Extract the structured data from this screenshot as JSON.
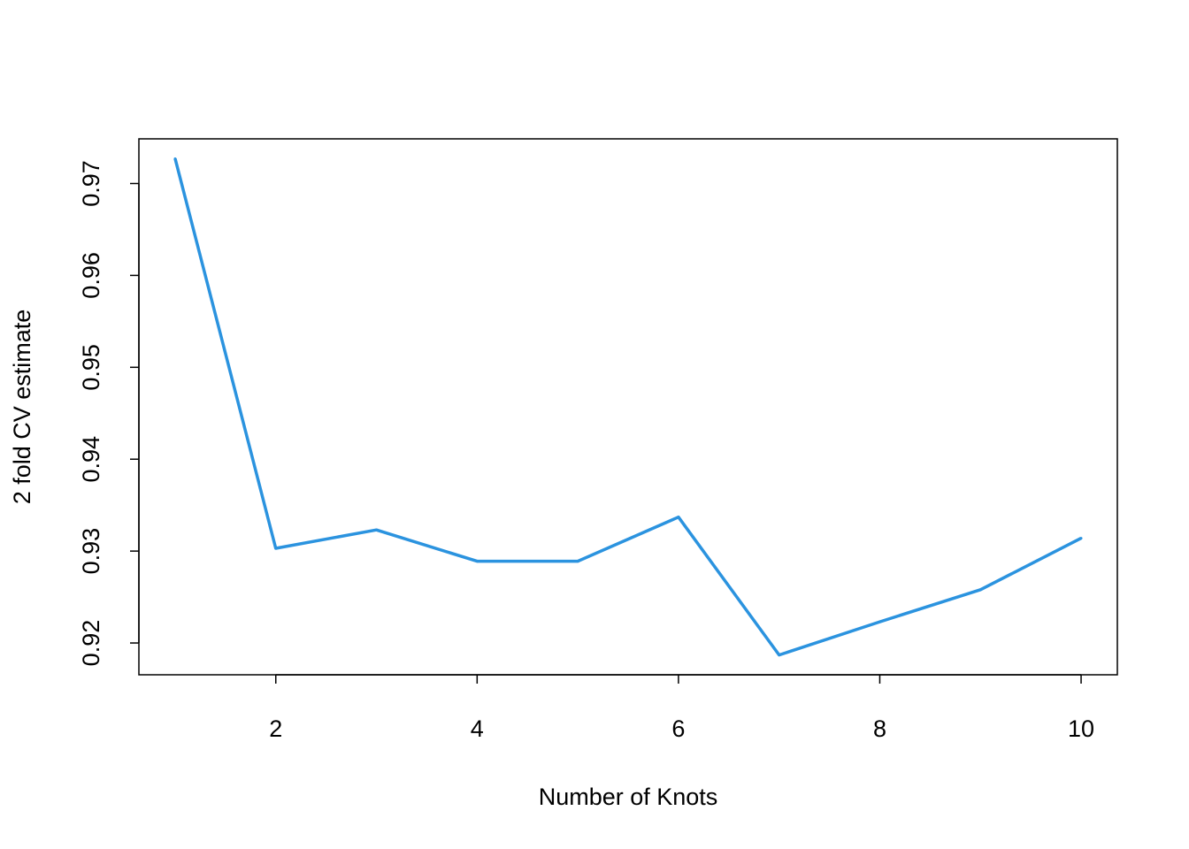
{
  "chart_data": {
    "type": "line",
    "title": "",
    "xlabel": "Number of Knots",
    "ylabel": "2 fold CV estimate",
    "x": [
      1,
      2,
      3,
      4,
      5,
      6,
      7,
      8,
      9,
      10
    ],
    "series": [
      {
        "values": [
          0.9727,
          0.9303,
          0.9323,
          0.9289,
          0.9289,
          0.9337,
          0.9187,
          0.9223,
          0.9258,
          0.9314
        ],
        "color": "#2B93DF"
      }
    ],
    "xticks": [
      2,
      4,
      6,
      8,
      10
    ],
    "xtick_labels": [
      "2",
      "4",
      "6",
      "8",
      "10"
    ],
    "yticks": [
      0.92,
      0.93,
      0.94,
      0.95,
      0.96,
      0.97
    ],
    "ytick_labels": [
      "0.92",
      "0.93",
      "0.94",
      "0.95",
      "0.96",
      "0.97"
    ],
    "xlim": [
      0.64,
      10.36
    ],
    "ylim": [
      0.91654,
      0.97486
    ],
    "grid": false,
    "legend": false
  }
}
